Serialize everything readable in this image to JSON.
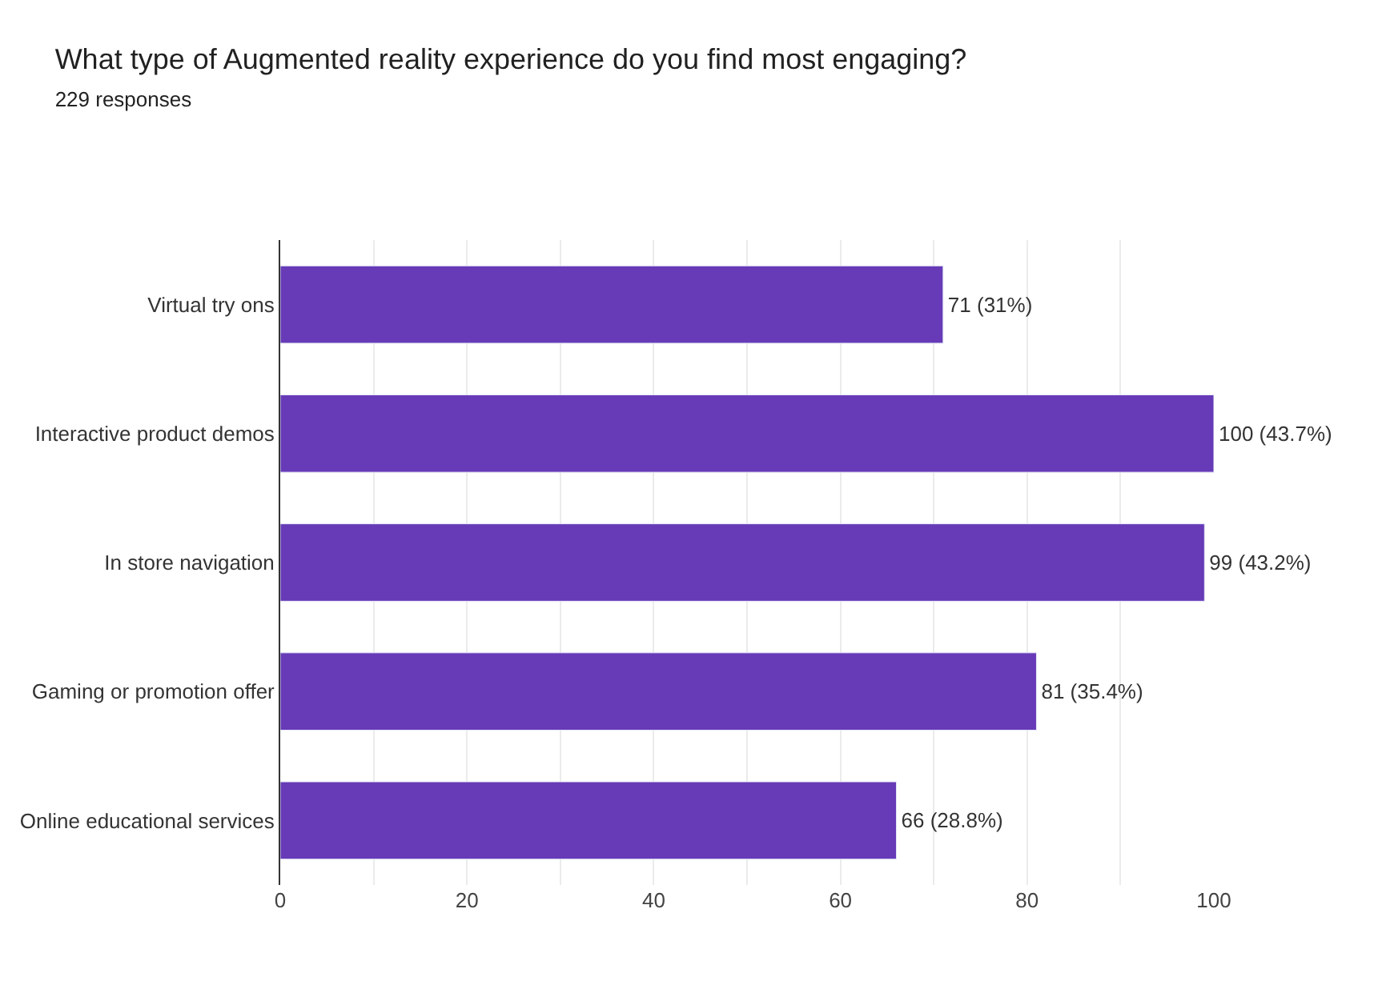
{
  "chart_data": {
    "type": "bar",
    "orientation": "horizontal",
    "title": "What type of Augmented reality experience do you find most engaging?",
    "subtitle": "229 responses",
    "categories": [
      "Virtual try ons",
      "Interactive product demos",
      "In store navigation",
      "Gaming or promotion offer",
      "Online educational services"
    ],
    "values": [
      71,
      100,
      99,
      81,
      66
    ],
    "color": "#673ab7",
    "value_labels": [
      "71 (31%)",
      "100 (43.7%)",
      "99 (43.2%)",
      "81 (35.4%)",
      "66 (28.8%)"
    ],
    "xlim": [
      0,
      100
    ],
    "xticks": [
      0,
      {
        "value": 10,
        "label": null
      },
      20,
      {
        "value": 30,
        "label": null
      },
      40,
      {
        "value": 50,
        "label": null
      },
      60,
      {
        "value": 70,
        "label": null
      },
      80,
      {
        "value": 90,
        "label": null
      },
      100
    ],
    "grid": "x"
  }
}
